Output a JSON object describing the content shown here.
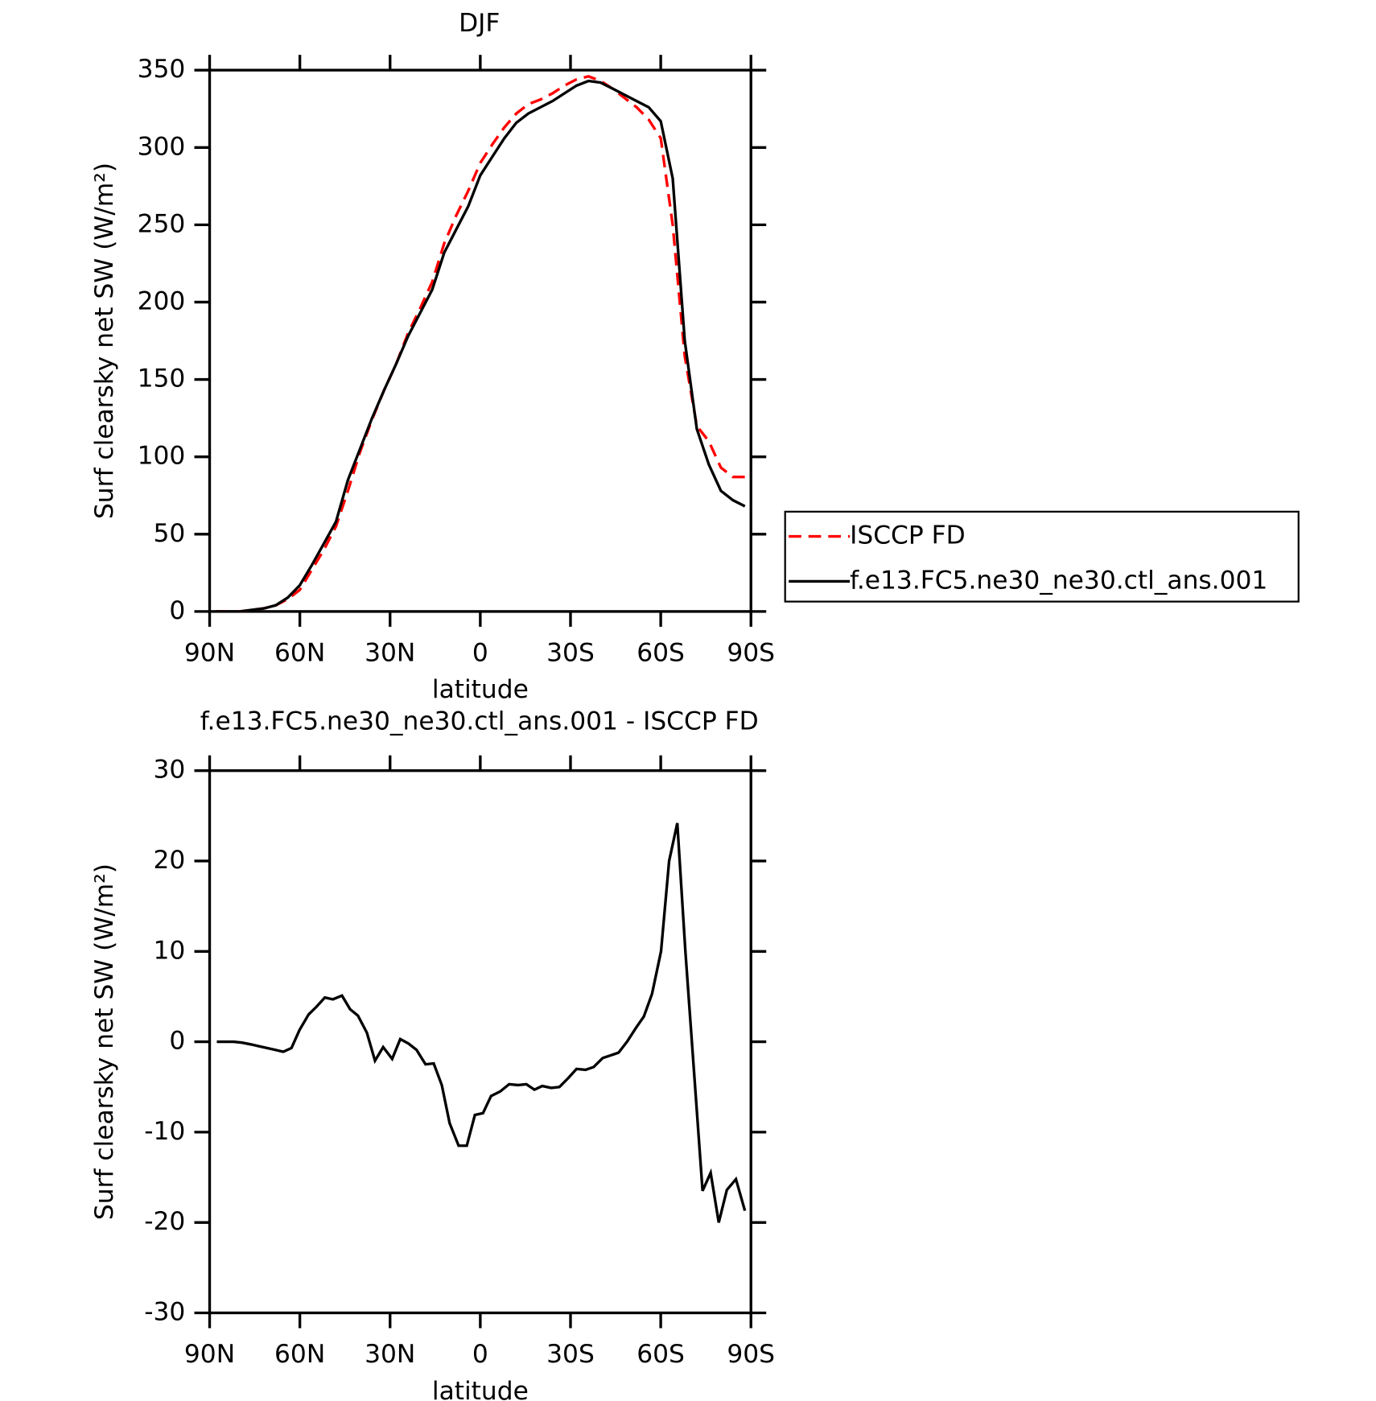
{
  "chart_data": [
    {
      "type": "line",
      "title": "DJF",
      "xlabel": "latitude",
      "ylabel": "Surf clearsky net SW (W/m²)",
      "x": [
        88,
        84,
        80,
        76,
        72,
        68,
        64,
        60,
        56,
        52,
        48,
        44,
        40,
        36,
        32,
        28,
        24,
        20,
        16,
        12,
        8,
        4,
        0,
        -4,
        -8,
        -12,
        -16,
        -20,
        -24,
        -28,
        -32,
        -36,
        -40,
        -44,
        -48,
        -52,
        -56,
        -60,
        -64,
        -68,
        -72,
        -76,
        -80,
        -84,
        -88
      ],
      "series": [
        {
          "name": "ISCCP FD",
          "color": "#ff0000",
          "linestyle": "dashed",
          "values": [
            0,
            0,
            0,
            1,
            2,
            4,
            8,
            14,
            27,
            40,
            55,
            78,
            103,
            124,
            143,
            160,
            180,
            196,
            213,
            238,
            256,
            272,
            290,
            302,
            313,
            322,
            328,
            331,
            335,
            340,
            344,
            346,
            343,
            338,
            332,
            326,
            318,
            306,
            250,
            165,
            120,
            110,
            93,
            87,
            87
          ]
        },
        {
          "name": "f.e13.FC5.ne30_ne30.ctl_ans.001",
          "color": "#000000",
          "linestyle": "solid",
          "values": [
            0,
            0,
            0,
            1,
            2,
            4,
            9,
            17,
            30,
            44,
            58,
            85,
            105,
            125,
            143,
            160,
            178,
            193,
            208,
            232,
            247,
            262,
            282,
            294,
            306,
            316,
            322,
            326,
            330,
            335,
            340,
            343,
            342,
            338,
            334,
            330,
            326,
            317,
            280,
            175,
            118,
            95,
            78,
            72,
            68
          ]
        }
      ],
      "xlim": [
        90,
        -90
      ],
      "xticks": [
        {
          "value": 90,
          "label": "90N"
        },
        {
          "value": 60,
          "label": "60N"
        },
        {
          "value": 30,
          "label": "30N"
        },
        0,
        {
          "value": -30,
          "label": "30S"
        },
        {
          "value": -60,
          "label": "60S"
        },
        {
          "value": -90,
          "label": "90S"
        }
      ],
      "ylim": [
        0,
        350
      ],
      "yticks": [
        0,
        50,
        100,
        150,
        200,
        250,
        300,
        350
      ],
      "legend": "right"
    },
    {
      "type": "line",
      "title": "f.e13.FC5.ne30_ne30.ctl_ans.001 - ISCCP FD",
      "xlabel": "latitude",
      "ylabel": "Surf clearsky net SW (W/m²)",
      "x": [
        87.6,
        84.9,
        82,
        79.2,
        76.2,
        73.6,
        70.9,
        68.2,
        65.5,
        62.8,
        60.1,
        57.1,
        54.4,
        51.7,
        49,
        46,
        43.3,
        40.7,
        37.7,
        35,
        32.3,
        29.3,
        26.6,
        23.9,
        21.2,
        18.2,
        15.5,
        12.8,
        10.2,
        7.2,
        4.5,
        1.8,
        -0.9,
        -3.6,
        -6.6,
        -9.6,
        -12.6,
        -15.3,
        -18,
        -20.6,
        -23.6,
        -26.3,
        -29.3,
        -32,
        -35,
        -37.7,
        -40.7,
        -43.4,
        -46,
        -48.8,
        -51.7,
        -54.4,
        -57.1,
        -60.1,
        -62.8,
        -65.5,
        -68.2,
        -73.9,
        -76.6,
        -79.3,
        -82,
        -85,
        -88
      ],
      "series": [
        {
          "color": "#000000",
          "linestyle": "solid",
          "values": [
            0,
            0,
            0,
            -0.1,
            -0.3,
            -0.5,
            -0.7,
            -0.9,
            -1.1,
            -0.7,
            1.3,
            3,
            3.9,
            4.9,
            4.7,
            5.1,
            3.6,
            2.9,
            1,
            -2.1,
            -0.6,
            -1.9,
            0.3,
            -0.2,
            -0.9,
            -2.5,
            -2.4,
            -4.8,
            -9,
            -11.5,
            -11.5,
            -8.1,
            -7.9,
            -6,
            -5.5,
            -4.7,
            -4.8,
            -4.7,
            -5.3,
            -4.9,
            -5.1,
            -5,
            -4,
            -3,
            -3.1,
            -2.8,
            -1.8,
            -1.5,
            -1.2,
            0,
            1.5,
            2.8,
            5.3,
            10,
            20,
            24.2,
            10,
            -16.5,
            -14.5,
            -20,
            -16.4,
            -15.2,
            -18.7
          ]
        }
      ],
      "xlim": [
        90,
        -90
      ],
      "xticks": [
        {
          "value": 90,
          "label": "90N"
        },
        {
          "value": 60,
          "label": "60N"
        },
        {
          "value": 30,
          "label": "30N"
        },
        0,
        {
          "value": -30,
          "label": "30S"
        },
        {
          "value": -60,
          "label": "60S"
        },
        {
          "value": -90,
          "label": "90S"
        }
      ],
      "ylim": [
        -30,
        30
      ],
      "yticks": [
        -30,
        -20,
        -10,
        0,
        10,
        20,
        30
      ]
    }
  ]
}
